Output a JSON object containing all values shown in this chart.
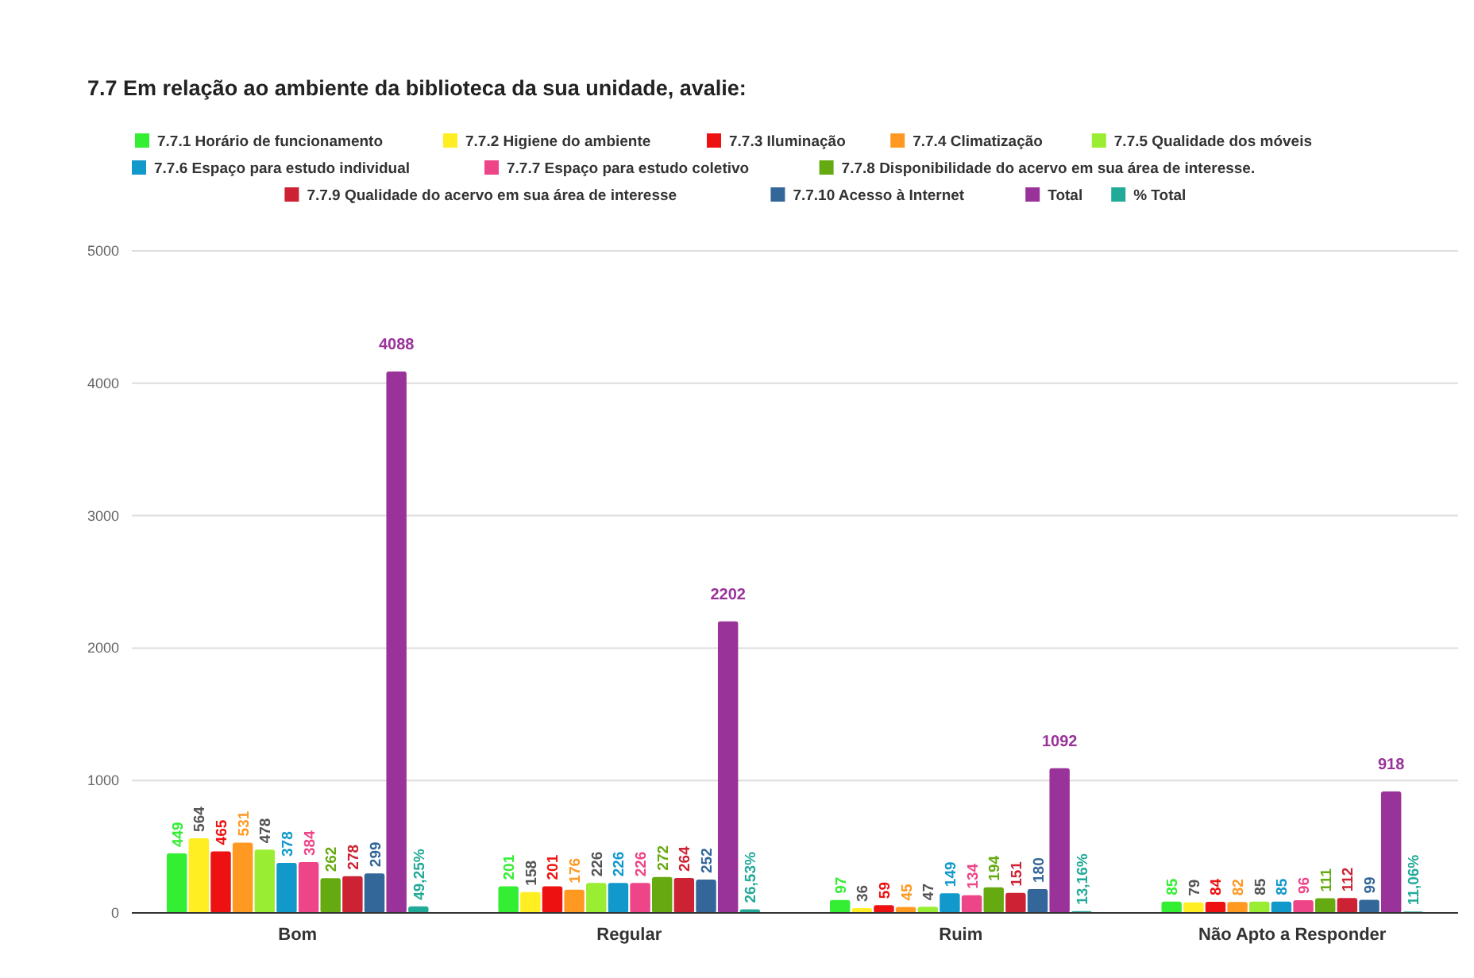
{
  "chart_data": {
    "type": "bar",
    "title": "7.7 Em relação ao ambiente da biblioteca da sua unidade, avalie:",
    "categories": [
      "Bom",
      "Regular",
      "Ruim",
      "Não Apto a Responder"
    ],
    "series": [
      {
        "name": "7.7.1 Horário de funcionamento",
        "color": "#33ee33",
        "values": [
          449,
          201,
          97,
          85
        ],
        "value_labels": [
          "449",
          "201",
          "97",
          "85"
        ]
      },
      {
        "name": "7.7.2 Higiene do ambiente",
        "color": "#ffee22",
        "values": [
          564,
          158,
          36,
          79
        ],
        "value_labels": [
          "564",
          "158",
          "36",
          "79"
        ]
      },
      {
        "name": "7.7.3 Iluminação",
        "color": "#ee1111",
        "values": [
          465,
          201,
          59,
          84
        ],
        "value_labels": [
          "465",
          "201",
          "59",
          "84"
        ]
      },
      {
        "name": "7.7.4 Climatização",
        "color": "#ff9922",
        "values": [
          531,
          176,
          45,
          82
        ],
        "value_labels": [
          "531",
          "176",
          "45",
          "82"
        ]
      },
      {
        "name": "7.7.5 Qualidade dos móveis",
        "color": "#99ee33",
        "values": [
          478,
          226,
          47,
          85
        ],
        "value_labels": [
          "478",
          "226",
          "47",
          "85"
        ]
      },
      {
        "name": "7.7.6 Espaço para estudo individual",
        "color": "#1199cc",
        "values": [
          378,
          226,
          149,
          85
        ],
        "value_labels": [
          "378",
          "226",
          "149",
          "85"
        ]
      },
      {
        "name": "7.7.7 Espaço para estudo coletivo",
        "color": "#ee4488",
        "values": [
          384,
          226,
          134,
          96
        ],
        "value_labels": [
          "384",
          "226",
          "134",
          "96"
        ]
      },
      {
        "name": "7.7.8 Disponibilidade do acervo em sua área de interesse.",
        "color": "#66aa11",
        "values": [
          262,
          272,
          194,
          111
        ],
        "value_labels": [
          "262",
          "272",
          "194",
          "111"
        ]
      },
      {
        "name": "7.7.9 Qualidade do acervo em sua área de interesse",
        "color": "#cc2233",
        "values": [
          278,
          264,
          151,
          112
        ],
        "value_labels": [
          "278",
          "264",
          "151",
          "112"
        ]
      },
      {
        "name": "7.7.10 Acesso à Internet",
        "color": "#336699",
        "values": [
          299,
          252,
          180,
          99
        ],
        "value_labels": [
          "299",
          "252",
          "180",
          "99"
        ]
      },
      {
        "name": "Total",
        "color": "#993399",
        "values": [
          4088,
          2202,
          1092,
          918
        ],
        "value_labels": [
          "4088",
          "2202",
          "1092",
          "918"
        ]
      },
      {
        "name": "% Total",
        "color": "#22aa99",
        "values": [
          49.25,
          26.53,
          13.16,
          11.06
        ],
        "value_labels": [
          "49,25%",
          "26,53%",
          "13,16%",
          "11,06%"
        ]
      }
    ],
    "ylim": [
      0,
      5000
    ],
    "yticks": [
      0,
      1000,
      2000,
      3000,
      4000,
      5000
    ],
    "grid": "y",
    "legend": "top"
  }
}
